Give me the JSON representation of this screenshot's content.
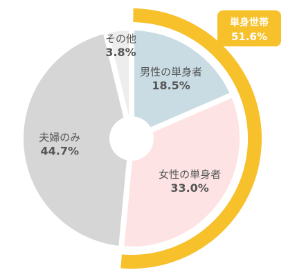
{
  "chart_data": {
    "type": "pie",
    "slices": [
      {
        "name": "男性の単身者",
        "value": 18.5,
        "label": "18.5%",
        "color": "#C9DCE4"
      },
      {
        "name": "女性の単身者",
        "value": 33.0,
        "label": "33.0%",
        "color": "#FDE3E4"
      },
      {
        "name": "夫婦のみ",
        "value": 44.7,
        "label": "44.7%",
        "color": "#D6D6D6"
      },
      {
        "name": "その他",
        "value": 3.8,
        "label": "3.8%",
        "color": "#EDEDED"
      }
    ],
    "group": {
      "name": "単身世帯",
      "value": 51.6,
      "label": "51.6%",
      "members": [
        "男性の単身者",
        "女性の単身者"
      ],
      "color": "#F7C12C"
    }
  }
}
